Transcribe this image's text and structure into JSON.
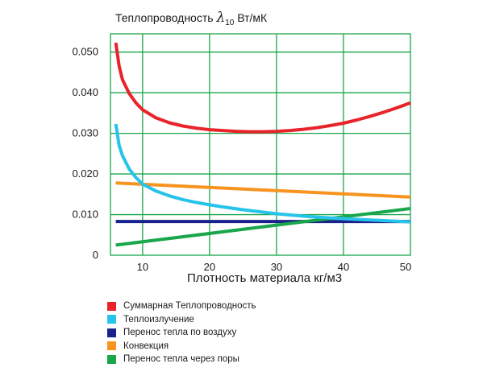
{
  "chart_data": {
    "type": "line",
    "y_title_text": "Теплопроводность",
    "y_title_symbol": "λ",
    "y_title_subscript": "10",
    "y_title_unit": "Вт/мК",
    "xlabel": "Плотность материала кг/м3",
    "xlim": [
      5,
      50
    ],
    "ylim": [
      0,
      0.055
    ],
    "x_ticks": [
      10,
      20,
      30,
      40,
      50
    ],
    "x_tick_labels": [
      "10",
      "20",
      "30",
      "40",
      "50"
    ],
    "y_ticks": [
      0,
      0.01,
      0.02,
      0.03,
      0.04,
      0.05
    ],
    "y_tick_labels": [
      "0",
      "0.010",
      "0.020",
      "0.030",
      "0.040",
      "0.050"
    ],
    "grid": true,
    "grid_color": "#1aa64a",
    "legend_position": "bottom",
    "series": [
      {
        "name": "Суммарная Теплопроводность",
        "color": "#e8232a",
        "x": [
          6,
          6.5,
          7,
          8,
          9,
          10,
          12,
          14,
          16,
          18,
          20,
          22,
          24,
          26,
          28,
          30,
          32,
          34,
          36,
          38,
          40,
          42,
          44,
          46,
          48,
          50
        ],
        "y": [
          0.0523,
          0.0465,
          0.0432,
          0.0398,
          0.0375,
          0.0358,
          0.0338,
          0.0326,
          0.0318,
          0.0313,
          0.0309,
          0.0307,
          0.0305,
          0.0304,
          0.0304,
          0.0305,
          0.0307,
          0.031,
          0.0314,
          0.0319,
          0.0325,
          0.0333,
          0.0342,
          0.0352,
          0.0363,
          0.0375
        ]
      },
      {
        "name": "Теплоизлучение",
        "color": "#26c3ea",
        "x": [
          6,
          6.5,
          7,
          8,
          9,
          10,
          12,
          14,
          16,
          18,
          20,
          22,
          25,
          28,
          30,
          35,
          40,
          45,
          50
        ],
        "y": [
          0.0323,
          0.027,
          0.0245,
          0.0212,
          0.0191,
          0.0175,
          0.0158,
          0.0146,
          0.0137,
          0.013,
          0.0124,
          0.0119,
          0.0112,
          0.0106,
          0.0102,
          0.0095,
          0.009,
          0.0086,
          0.0082
        ]
      },
      {
        "name": "Перенос тепла по воздуху",
        "color": "#18218c",
        "x": [
          6,
          50
        ],
        "y": [
          0.0083,
          0.0083
        ]
      },
      {
        "name": "Конвекция",
        "color": "#f7931e",
        "x": [
          6,
          50
        ],
        "y": [
          0.0178,
          0.0143
        ]
      },
      {
        "name": "Перенос тепла через поры",
        "color": "#1aa64a",
        "x": [
          6,
          50
        ],
        "y": [
          0.0025,
          0.0115
        ]
      }
    ]
  }
}
